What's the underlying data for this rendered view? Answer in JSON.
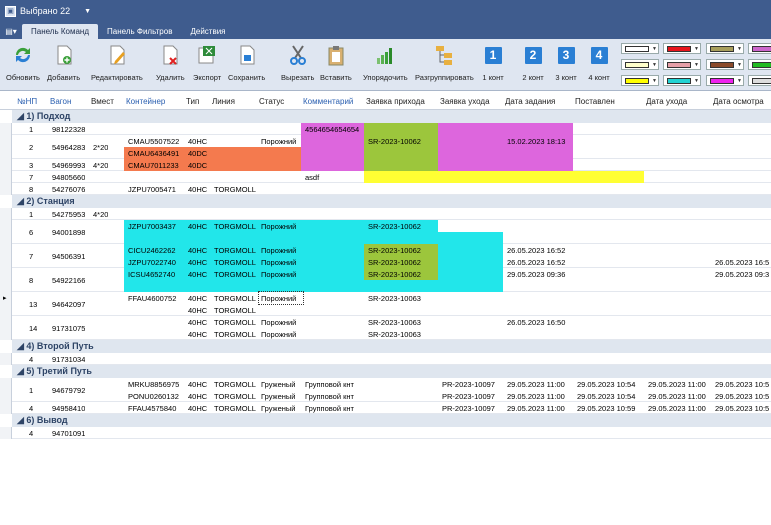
{
  "window": {
    "title": "Выбрано 22"
  },
  "tabs": [
    "Панель Команд",
    "Панель Фильтров",
    "Действия"
  ],
  "ribbon": {
    "buttons": [
      "Обновить",
      "Добавить",
      "Редактировать",
      "Удалить",
      "Экспорт",
      "Сохранить",
      "Вырезать",
      "Вставить",
      "Упорядочить",
      "Разгруппировать"
    ],
    "konts": [
      {
        "n": "1",
        "label": "1 конт"
      },
      {
        "n": "2",
        "label": "2 конт"
      },
      {
        "n": "3",
        "label": "3 конт"
      },
      {
        "n": "4",
        "label": "4 конт"
      }
    ],
    "swatches": [
      "#ffffff",
      "#e8141c",
      "#a89f5c",
      "#cc66cc",
      "#ffffcc",
      "#e6a0a8",
      "#8a4a2a",
      "#22bb22",
      "#ffff00",
      "#22d3d3",
      "#ee22ee",
      "#dddddd"
    ]
  },
  "columns": [
    "№НП",
    "Вагон",
    "Вмест",
    "Контейнер",
    "Тип",
    "Линия",
    "Статус",
    "Комментарий",
    "Заявка прихода",
    "Заявка ухода",
    "Дата задания",
    "Поставлен",
    "Дата ухода",
    "Дата осмотра"
  ],
  "groups": [
    {
      "title": "1) Подход",
      "rows": [
        {
          "n": "1",
          "wagon": "98122328",
          "vmest": "",
          "lines": [
            {
              "cont": "",
              "type": "",
              "line": "",
              "status": "",
              "comment": "4564654654654",
              "zp": "",
              "zu": "",
              "dz": "",
              "post": "",
              "du": "",
              "dos": ""
            }
          ]
        },
        {
          "n": "2",
          "wagon": "54964283",
          "vmest": "2*20",
          "lines": [
            {
              "cont": "CMAU5507522",
              "type": "40HC",
              "line": "",
              "status": "Порожний",
              "comment": "",
              "zp": "SR-2023-10062",
              "zu": "",
              "dz": "15.02.2023 18:13",
              "post": "",
              "du": "",
              "dos": ""
            },
            {
              "cont": "CMAU6436491",
              "type": "40DC",
              "line": "",
              "status": "",
              "comment": "",
              "zp": "",
              "zu": "",
              "dz": "",
              "post": "",
              "du": "",
              "dos": ""
            }
          ]
        },
        {
          "n": "3",
          "wagon": "54969993",
          "vmest": "4*20",
          "lines": [
            {
              "cont": "CMAU7011233",
              "type": "40DC",
              "line": "",
              "status": "",
              "comment": "",
              "zp": "",
              "zu": "",
              "dz": "",
              "post": "",
              "du": "",
              "dos": ""
            }
          ]
        },
        {
          "n": "7",
          "wagon": "94805660",
          "vmest": "",
          "lines": [
            {
              "cont": "",
              "type": "",
              "line": "",
              "status": "",
              "comment": "asdf",
              "zp": "",
              "zu": "",
              "dz": "",
              "post": "",
              "du": "",
              "dos": ""
            }
          ]
        },
        {
          "n": "8",
          "wagon": "54276076",
          "vmest": "",
          "lines": [
            {
              "cont": "JZPU7005471",
              "type": "40HC",
              "line": "TORGMOLL",
              "status": "",
              "comment": "",
              "zp": "",
              "zu": "",
              "dz": "",
              "post": "",
              "du": "",
              "dos": ""
            }
          ]
        }
      ]
    },
    {
      "title": "2) Станция",
      "rows": [
        {
          "n": "1",
          "wagon": "54275953",
          "vmest": "4*20",
          "lines": []
        },
        {
          "n": "6",
          "wagon": "94001898",
          "vmest": "",
          "lines": [
            {
              "cont": "JZPU7003437",
              "type": "40HC",
              "line": "TORGMOLL",
              "status": "Порожний",
              "comment": "",
              "zp": "SR-2023-10062",
              "zu": "",
              "dz": "",
              "post": "",
              "du": "",
              "dos": ""
            }
          ]
        },
        {
          "n": "7",
          "wagon": "94506391",
          "vmest": "",
          "lines": [
            {
              "cont": "CICU2462262",
              "type": "40HC",
              "line": "TORGMOLL",
              "status": "Порожний",
              "comment": "",
              "zp": "SR-2023-10062",
              "zu": "",
              "dz": "26.05.2023 16:52",
              "post": "",
              "du": "",
              "dos": ""
            },
            {
              "cont": "JZPU7022740",
              "type": "40HC",
              "line": "TORGMOLL",
              "status": "Порожний",
              "comment": "",
              "zp": "SR-2023-10062",
              "zu": "",
              "dz": "26.05.2023 16:52",
              "post": "",
              "du": "",
              "dos": "26.05.2023 16:5"
            }
          ]
        },
        {
          "n": "8",
          "wagon": "54922166",
          "vmest": "",
          "lines": [
            {
              "cont": "ICSU4652740",
              "type": "40HC",
              "line": "TORGMOLL",
              "status": "Порожний",
              "comment": "",
              "zp": "SR-2023-10062",
              "zu": "",
              "dz": "29.05.2023 09:36",
              "post": "",
              "du": "",
              "dos": "29.05.2023 09:3"
            }
          ]
        },
        {
          "n": "13",
          "wagon": "94642097",
          "vmest": "",
          "lines": [
            {
              "cont": "FFAU4600752",
              "type": "40HC",
              "line": "TORGMOLL",
              "status": "Порожний",
              "comment": "",
              "zp": "SR-2023-10063",
              "zu": "",
              "dz": "",
              "post": "",
              "du": "",
              "dos": ""
            },
            {
              "cont": "",
              "type": "40HC",
              "line": "TORGMOLL",
              "status": "",
              "comment": "",
              "zp": "",
              "zu": "",
              "dz": "",
              "post": "",
              "du": "",
              "dos": ""
            }
          ]
        },
        {
          "n": "14",
          "wagon": "91731075",
          "vmest": "",
          "lines": [
            {
              "cont": "",
              "type": "40HC",
              "line": "TORGMOLL",
              "status": "Порожний",
              "comment": "",
              "zp": "SR-2023-10063",
              "zu": "",
              "dz": "26.05.2023 16:50",
              "post": "",
              "du": "",
              "dos": ""
            },
            {
              "cont": "",
              "type": "40HC",
              "line": "TORGMOLL",
              "status": "Порожний",
              "comment": "",
              "zp": "SR-2023-10063",
              "zu": "",
              "dz": "",
              "post": "",
              "du": "",
              "dos": ""
            }
          ]
        }
      ]
    },
    {
      "title": "4) Второй Путь",
      "rows": [
        {
          "n": "4",
          "wagon": "91731034",
          "vmest": "",
          "lines": []
        }
      ]
    },
    {
      "title": "5) Третий Путь",
      "rows": [
        {
          "n": "1",
          "wagon": "94679792",
          "vmest": "",
          "lines": [
            {
              "cont": "MRKU8856975",
              "type": "40HC",
              "line": "TORGMOLL",
              "status": "Груженый",
              "comment": "Групповой кнт",
              "zp": "",
              "zu": "PR-2023-10097",
              "dz": "29.05.2023 11:00",
              "post": "29.05.2023 10:54",
              "du": "29.05.2023 11:00",
              "dos": "29.05.2023 10:5"
            },
            {
              "cont": "PONU0260132",
              "type": "40HC",
              "line": "TORGMOLL",
              "status": "Груженый",
              "comment": "Групповой кнт",
              "zp": "",
              "zu": "PR-2023-10097",
              "dz": "29.05.2023 11:00",
              "post": "29.05.2023 10:54",
              "du": "29.05.2023 11:00",
              "dos": "29.05.2023 10:5"
            }
          ]
        },
        {
          "n": "4",
          "wagon": "94958410",
          "vmest": "",
          "lines": [
            {
              "cont": "FFAU4575840",
              "type": "40HC",
              "line": "TORGMOLL",
              "status": "Груженый",
              "comment": "Групповой кнт",
              "zp": "",
              "zu": "PR-2023-10097",
              "dz": "29.05.2023 11:00",
              "post": "29.05.2023 10:59",
              "du": "29.05.2023 11:00",
              "dos": "29.05.2023 10:5"
            }
          ]
        }
      ]
    },
    {
      "title": "6) Вывод",
      "rows": [
        {
          "n": "4",
          "wagon": "94701091",
          "vmest": "",
          "lines": []
        }
      ]
    }
  ],
  "colors": {
    "magenta": "#dd66dd",
    "green": "#9cc63c",
    "orange": "#f47a4e",
    "yellow": "#ffff33",
    "cyan": "#22e6ea",
    "header_blue": "#2a5fb0"
  }
}
